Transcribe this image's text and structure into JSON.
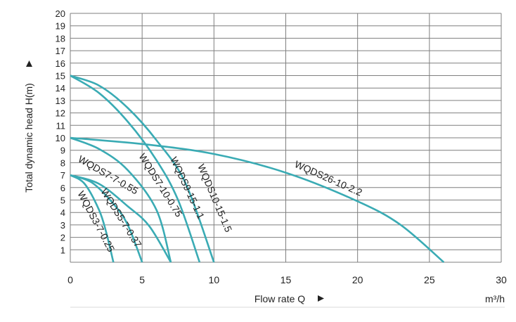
{
  "chart_data": {
    "type": "line",
    "xlabel": "Flow rate Q",
    "ylabel": "Total dynamic head H(m)",
    "unit": "m³/h",
    "xlim": [
      0,
      30
    ],
    "ylim": [
      0,
      20
    ],
    "xticks": [
      0,
      5,
      10,
      15,
      20,
      25,
      30
    ],
    "yticks": [
      1,
      2,
      3,
      4,
      5,
      6,
      7,
      8,
      9,
      10,
      11,
      12,
      13,
      14,
      15,
      16,
      17,
      18,
      19,
      20
    ],
    "grid": true,
    "series": [
      {
        "name": "WQDS3-7-0.25",
        "x": [
          0,
          1,
          2,
          2.5,
          3
        ],
        "y": [
          7,
          6.3,
          4.2,
          2.4,
          0
        ]
      },
      {
        "name": "WQDS5-7-0.37",
        "x": [
          0,
          1.5,
          3,
          4,
          5
        ],
        "y": [
          7,
          6.4,
          4.7,
          3.0,
          0
        ]
      },
      {
        "name": "WQDS7-7-0.55",
        "x": [
          0,
          2,
          4,
          5.5,
          7
        ],
        "y": [
          7,
          6.3,
          4.5,
          2.9,
          0
        ]
      },
      {
        "name": "WQDS7-10-0.75",
        "x": [
          0,
          2,
          4,
          6,
          7
        ],
        "y": [
          10,
          9.1,
          7.4,
          4.2,
          0
        ]
      },
      {
        "name": "WQDS9-15-1.1",
        "x": [
          0,
          2,
          4,
          6,
          7.5,
          9
        ],
        "y": [
          15,
          13.6,
          11.3,
          8.2,
          5.0,
          0
        ]
      },
      {
        "name": "WQDS10-15-1.5",
        "x": [
          0,
          2,
          4,
          6,
          8,
          10
        ],
        "y": [
          15,
          14.2,
          12.4,
          9.8,
          6.4,
          0
        ]
      },
      {
        "name": "WQDS26-10-2.2",
        "x": [
          0,
          5,
          10,
          15,
          20,
          23,
          26
        ],
        "y": [
          10,
          9.5,
          8.7,
          7.2,
          4.9,
          3.0,
          0
        ]
      }
    ]
  }
}
